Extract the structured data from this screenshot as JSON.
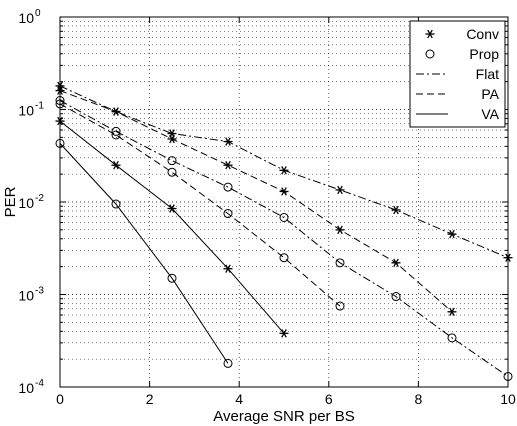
{
  "chart_data": {
    "type": "line",
    "xlabel": "Average SNR per BS",
    "ylabel": "PER",
    "xlim": [
      0,
      10
    ],
    "ylim": [
      0.0001,
      1
    ],
    "yscale": "log",
    "grid": true,
    "legend_position": "top-right",
    "x_ticks": [
      "0",
      "2",
      "4",
      "6",
      "8",
      "10"
    ],
    "y_ticks": [
      {
        "base": "10",
        "exp": "0"
      },
      {
        "base": "10",
        "exp": "-1"
      },
      {
        "base": "10",
        "exp": "-2"
      },
      {
        "base": "10",
        "exp": "-3"
      },
      {
        "base": "10",
        "exp": "-4"
      }
    ],
    "legend": [
      {
        "label": "Conv",
        "kind": "marker",
        "marker": "star"
      },
      {
        "label": "Prop",
        "kind": "marker",
        "marker": "circle"
      },
      {
        "label": "Flat",
        "kind": "line",
        "dash": "dashdot"
      },
      {
        "label": "PA",
        "kind": "line",
        "dash": "dashed"
      },
      {
        "label": "VA",
        "kind": "line",
        "dash": "solid"
      }
    ],
    "series": [
      {
        "dash": "dashdot",
        "marker": "star",
        "x": [
          0,
          1.25,
          2.5,
          3.75,
          5,
          6.25,
          7.5,
          8.75,
          10
        ],
        "y": [
          0.18,
          0.095,
          0.055,
          0.045,
          0.022,
          0.0135,
          0.0082,
          0.0045,
          0.0025
        ]
      },
      {
        "dash": "dashdot",
        "marker": "circle",
        "x": [
          0,
          1.25,
          2.5,
          3.75,
          5,
          6.25,
          7.5,
          8.75,
          10
        ],
        "y": [
          0.125,
          0.058,
          0.028,
          0.0145,
          0.0068,
          0.0022,
          0.00095,
          0.00034,
          0.00013
        ]
      },
      {
        "dash": "dashed",
        "marker": "star",
        "x": [
          0,
          1.25,
          2.5,
          3.75,
          5,
          6.25,
          7.5,
          8.75
        ],
        "y": [
          0.16,
          0.095,
          0.048,
          0.025,
          0.013,
          0.005,
          0.0022,
          0.00065
        ]
      },
      {
        "dash": "dashed",
        "marker": "circle",
        "x": [
          0,
          1.25,
          2.5,
          3.75,
          5,
          6.25
        ],
        "y": [
          0.115,
          0.053,
          0.021,
          0.0075,
          0.0025,
          0.00075
        ]
      },
      {
        "dash": "solid",
        "marker": "star",
        "x": [
          0,
          1.25,
          2.5,
          3.75,
          5
        ],
        "y": [
          0.075,
          0.025,
          0.0085,
          0.0019,
          0.00038
        ]
      },
      {
        "dash": "solid",
        "marker": "circle",
        "x": [
          0,
          1.25,
          2.5,
          3.75
        ],
        "y": [
          0.043,
          0.0095,
          0.0015,
          0.00018
        ]
      }
    ]
  }
}
